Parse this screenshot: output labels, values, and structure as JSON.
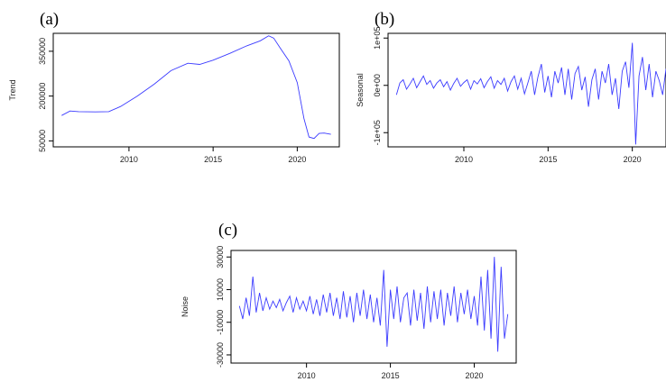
{
  "chart_data": [
    {
      "type": "line",
      "panel_label": "(a)",
      "ylabel": "Trend",
      "xlabel": "",
      "x_ticks": [
        2010,
        2015,
        2020
      ],
      "y_ticks": [
        50000,
        200000,
        350000
      ],
      "y_tick_labels": [
        "50000",
        "200000",
        "350000"
      ],
      "xlim": [
        2005.5,
        2022.5
      ],
      "ylim": [
        30000,
        410000
      ],
      "series": [
        {
          "color": "#3b3bff",
          "x": [
            2006,
            2006.5,
            2007,
            2008,
            2008.8,
            2009.5,
            2010.5,
            2011.5,
            2012.5,
            2013.5,
            2014.2,
            2015,
            2016,
            2017,
            2017.8,
            2018.3,
            2018.6,
            2019,
            2019.5,
            2020,
            2020.4,
            2020.7,
            2021,
            2021.3,
            2021.6,
            2022
          ],
          "y": [
            135000,
            150000,
            148000,
            147000,
            148000,
            165000,
            200000,
            240000,
            285000,
            310000,
            306000,
            320000,
            343000,
            368000,
            385000,
            402000,
            394000,
            360000,
            318000,
            245000,
            125000,
            63000,
            58000,
            75000,
            76000,
            72000
          ]
        }
      ]
    },
    {
      "type": "line",
      "panel_label": "(b)",
      "ylabel": "Seasonal",
      "xlabel": "",
      "x_ticks": [
        2010,
        2015,
        2020
      ],
      "y_ticks": [
        -100000,
        0,
        100000
      ],
      "y_tick_labels": [
        "-1e+05",
        "0e+00",
        "1e+05"
      ],
      "xlim": [
        2005.5,
        2022
      ],
      "ylim": [
        -130000,
        110000
      ],
      "series": [
        {
          "color": "#3b3bff",
          "x": [
            2006,
            2006.2,
            2006.4,
            2006.6,
            2006.8,
            2007,
            2007.2,
            2007.4,
            2007.6,
            2007.8,
            2008,
            2008.2,
            2008.4,
            2008.6,
            2008.8,
            2009,
            2009.2,
            2009.4,
            2009.6,
            2009.8,
            2010,
            2010.2,
            2010.4,
            2010.6,
            2010.8,
            2011,
            2011.2,
            2011.4,
            2011.6,
            2011.8,
            2012,
            2012.2,
            2012.4,
            2012.6,
            2012.8,
            2013,
            2013.2,
            2013.4,
            2013.6,
            2013.8,
            2014,
            2014.2,
            2014.4,
            2014.6,
            2014.8,
            2015,
            2015.2,
            2015.4,
            2015.6,
            2015.8,
            2016,
            2016.2,
            2016.4,
            2016.6,
            2016.8,
            2017,
            2017.2,
            2017.4,
            2017.6,
            2017.8,
            2018,
            2018.2,
            2018.4,
            2018.6,
            2018.8,
            2019,
            2019.2,
            2019.4,
            2019.6,
            2019.8,
            2020,
            2020.2,
            2020.4,
            2020.6,
            2020.8,
            2021,
            2021.2,
            2021.4,
            2021.6,
            2021.8,
            2022
          ],
          "y": [
            -20000,
            5000,
            12000,
            -8000,
            3000,
            15000,
            -5000,
            8000,
            20000,
            2000,
            10000,
            -6000,
            5000,
            12000,
            -3000,
            8000,
            -10000,
            4000,
            15000,
            -2000,
            6000,
            12000,
            -8000,
            10000,
            3000,
            14000,
            -5000,
            8000,
            18000,
            -6000,
            10000,
            2000,
            15000,
            -12000,
            8000,
            20000,
            -8000,
            15000,
            -18000,
            5000,
            30000,
            -20000,
            18000,
            45000,
            -15000,
            20000,
            -25000,
            30000,
            5000,
            38000,
            -20000,
            35000,
            -30000,
            25000,
            40000,
            -10000,
            18000,
            -45000,
            12000,
            35000,
            -30000,
            30000,
            5000,
            45000,
            -20000,
            15000,
            -50000,
            30000,
            50000,
            -5000,
            90000,
            -125000,
            20000,
            60000,
            -10000,
            45000,
            -25000,
            30000,
            10000,
            -20000,
            35000
          ]
        }
      ]
    },
    {
      "type": "line",
      "panel_label": "(c)",
      "ylabel": "Noise",
      "xlabel": "",
      "x_ticks": [
        2010,
        2015,
        2020
      ],
      "y_ticks": [
        -30000,
        -10000,
        10000,
        30000
      ],
      "y_tick_labels": [
        "-30000",
        "-10000",
        "10000",
        "30000"
      ],
      "xlim": [
        2005.5,
        2022.5
      ],
      "ylim": [
        -35000,
        34000
      ],
      "series": [
        {
          "color": "#3b3bff",
          "x": [
            2006,
            2006.2,
            2006.4,
            2006.6,
            2006.8,
            2007,
            2007.2,
            2007.4,
            2007.6,
            2007.8,
            2008,
            2008.2,
            2008.4,
            2008.6,
            2008.8,
            2009,
            2009.2,
            2009.4,
            2009.6,
            2009.8,
            2010,
            2010.2,
            2010.4,
            2010.6,
            2010.8,
            2011,
            2011.2,
            2011.4,
            2011.6,
            2011.8,
            2012,
            2012.2,
            2012.4,
            2012.6,
            2012.8,
            2013,
            2013.2,
            2013.4,
            2013.6,
            2013.8,
            2014,
            2014.2,
            2014.4,
            2014.6,
            2014.8,
            2015,
            2015.2,
            2015.4,
            2015.6,
            2015.8,
            2016,
            2016.2,
            2016.4,
            2016.6,
            2016.8,
            2017,
            2017.2,
            2017.4,
            2017.6,
            2017.8,
            2018,
            2018.2,
            2018.4,
            2018.6,
            2018.8,
            2019,
            2019.2,
            2019.4,
            2019.6,
            2019.8,
            2020,
            2020.2,
            2020.4,
            2020.6,
            2020.8,
            2021,
            2021.2,
            2021.4,
            2021.6,
            2021.8,
            2022
          ],
          "y": [
            0,
            -8000,
            5000,
            -6000,
            18000,
            -4000,
            8000,
            -3000,
            5000,
            -2000,
            3000,
            -1000,
            4000,
            -3000,
            2000,
            6000,
            -4000,
            5000,
            -2000,
            3000,
            -3000,
            6000,
            -5000,
            4000,
            -6000,
            7000,
            -4000,
            8000,
            -6000,
            5000,
            -8000,
            9000,
            -7000,
            6000,
            -10000,
            8000,
            -6000,
            10000,
            -8000,
            7000,
            -10000,
            5000,
            -12000,
            22000,
            -25000,
            10000,
            -8000,
            12000,
            -10000,
            5000,
            8000,
            -12000,
            10000,
            -9000,
            8000,
            -14000,
            12000,
            -10000,
            9000,
            -8000,
            10000,
            -12000,
            8000,
            -6000,
            12000,
            -10000,
            8000,
            -5000,
            10000,
            -8000,
            6000,
            -12000,
            18000,
            -15000,
            22000,
            -20000,
            30000,
            -28000,
            24000,
            -20000,
            -5000
          ]
        }
      ]
    }
  ]
}
